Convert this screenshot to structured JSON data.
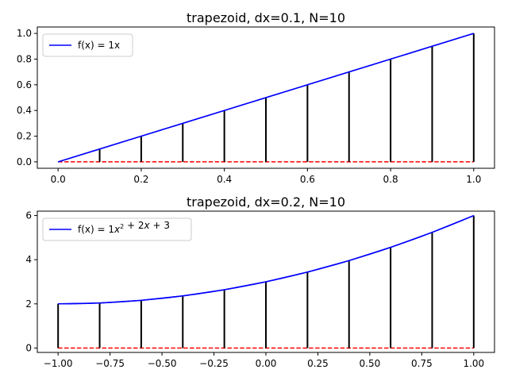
{
  "chart_data": [
    {
      "type": "line",
      "title": "trapezoid, dx=0.1, N=10",
      "legend": {
        "location": "upper-left",
        "entries": [
          {
            "label_parts": [
              {
                "t": "f(x) = 1x"
              }
            ],
            "color": "#0000ff"
          }
        ]
      },
      "function": {
        "kind": "polynomial",
        "coefficients": [
          0,
          1
        ]
      },
      "x_range": [
        0.0,
        1.0
      ],
      "xlim": [
        -0.05,
        1.05
      ],
      "ylim": [
        -0.05,
        1.05
      ],
      "xticks": [
        {
          "value": 0.0,
          "label": "0.0"
        },
        {
          "value": 0.2,
          "label": "0.2"
        },
        {
          "value": 0.4,
          "label": "0.4"
        },
        {
          "value": 0.6,
          "label": "0.6"
        },
        {
          "value": 0.8,
          "label": "0.8"
        },
        {
          "value": 1.0,
          "label": "1.0"
        }
      ],
      "yticks": [
        {
          "value": 0.0,
          "label": "0.0"
        },
        {
          "value": 0.2,
          "label": "0.2"
        },
        {
          "value": 0.4,
          "label": "0.4"
        },
        {
          "value": 0.6,
          "label": "0.6"
        },
        {
          "value": 0.8,
          "label": "0.8"
        },
        {
          "value": 1.0,
          "label": "1.0"
        }
      ],
      "trapezoid_x": [
        0.0,
        0.1,
        0.2,
        0.3,
        0.4,
        0.5,
        0.6,
        0.7,
        0.8,
        0.9,
        1.0
      ],
      "trapezoid_y": [
        0.0,
        0.1,
        0.2,
        0.3,
        0.4,
        0.5,
        0.6,
        0.7,
        0.8,
        0.9,
        1.0
      ],
      "grid": false,
      "colors": {
        "curve": "#0000ff",
        "verticals": "#000000",
        "baseline": "#ff0000"
      }
    },
    {
      "type": "line",
      "title": "trapezoid, dx=0.2, N=10",
      "legend": {
        "location": "upper-left",
        "entries": [
          {
            "label_parts": [
              {
                "t": "f(x) = 1"
              },
              {
                "t": "x",
                "i": true
              },
              {
                "t": "2",
                "sup": true
              },
              {
                "t": " + 2"
              },
              {
                "t": "x",
                "i": true
              },
              {
                "t": " + 3"
              }
            ],
            "color": "#0000ff"
          }
        ]
      },
      "function": {
        "kind": "polynomial",
        "coefficients": [
          3,
          2,
          1
        ]
      },
      "x_range": [
        -1.0,
        1.0
      ],
      "xlim": [
        -1.1,
        1.1
      ],
      "ylim": [
        -0.2,
        6.2
      ],
      "xticks": [
        {
          "value": -1.0,
          "label": "−1.00"
        },
        {
          "value": -0.75,
          "label": "−0.75"
        },
        {
          "value": -0.5,
          "label": "−0.50"
        },
        {
          "value": -0.25,
          "label": "−0.25"
        },
        {
          "value": 0.0,
          "label": "0.00"
        },
        {
          "value": 0.25,
          "label": "0.25"
        },
        {
          "value": 0.5,
          "label": "0.50"
        },
        {
          "value": 0.75,
          "label": "0.75"
        },
        {
          "value": 1.0,
          "label": "1.00"
        }
      ],
      "yticks": [
        {
          "value": 0,
          "label": "0"
        },
        {
          "value": 2,
          "label": "2"
        },
        {
          "value": 4,
          "label": "4"
        },
        {
          "value": 6,
          "label": "6"
        }
      ],
      "trapezoid_x": [
        -1.0,
        -0.8,
        -0.6,
        -0.4,
        -0.2,
        0.0,
        0.2,
        0.4,
        0.6,
        0.8,
        1.0
      ],
      "trapezoid_y": [
        2.0,
        2.04,
        2.16,
        2.36,
        2.64,
        3.0,
        3.44,
        3.96,
        4.56,
        5.24,
        6.0
      ],
      "grid": false,
      "colors": {
        "curve": "#0000ff",
        "verticals": "#000000",
        "baseline": "#ff0000"
      }
    }
  ]
}
